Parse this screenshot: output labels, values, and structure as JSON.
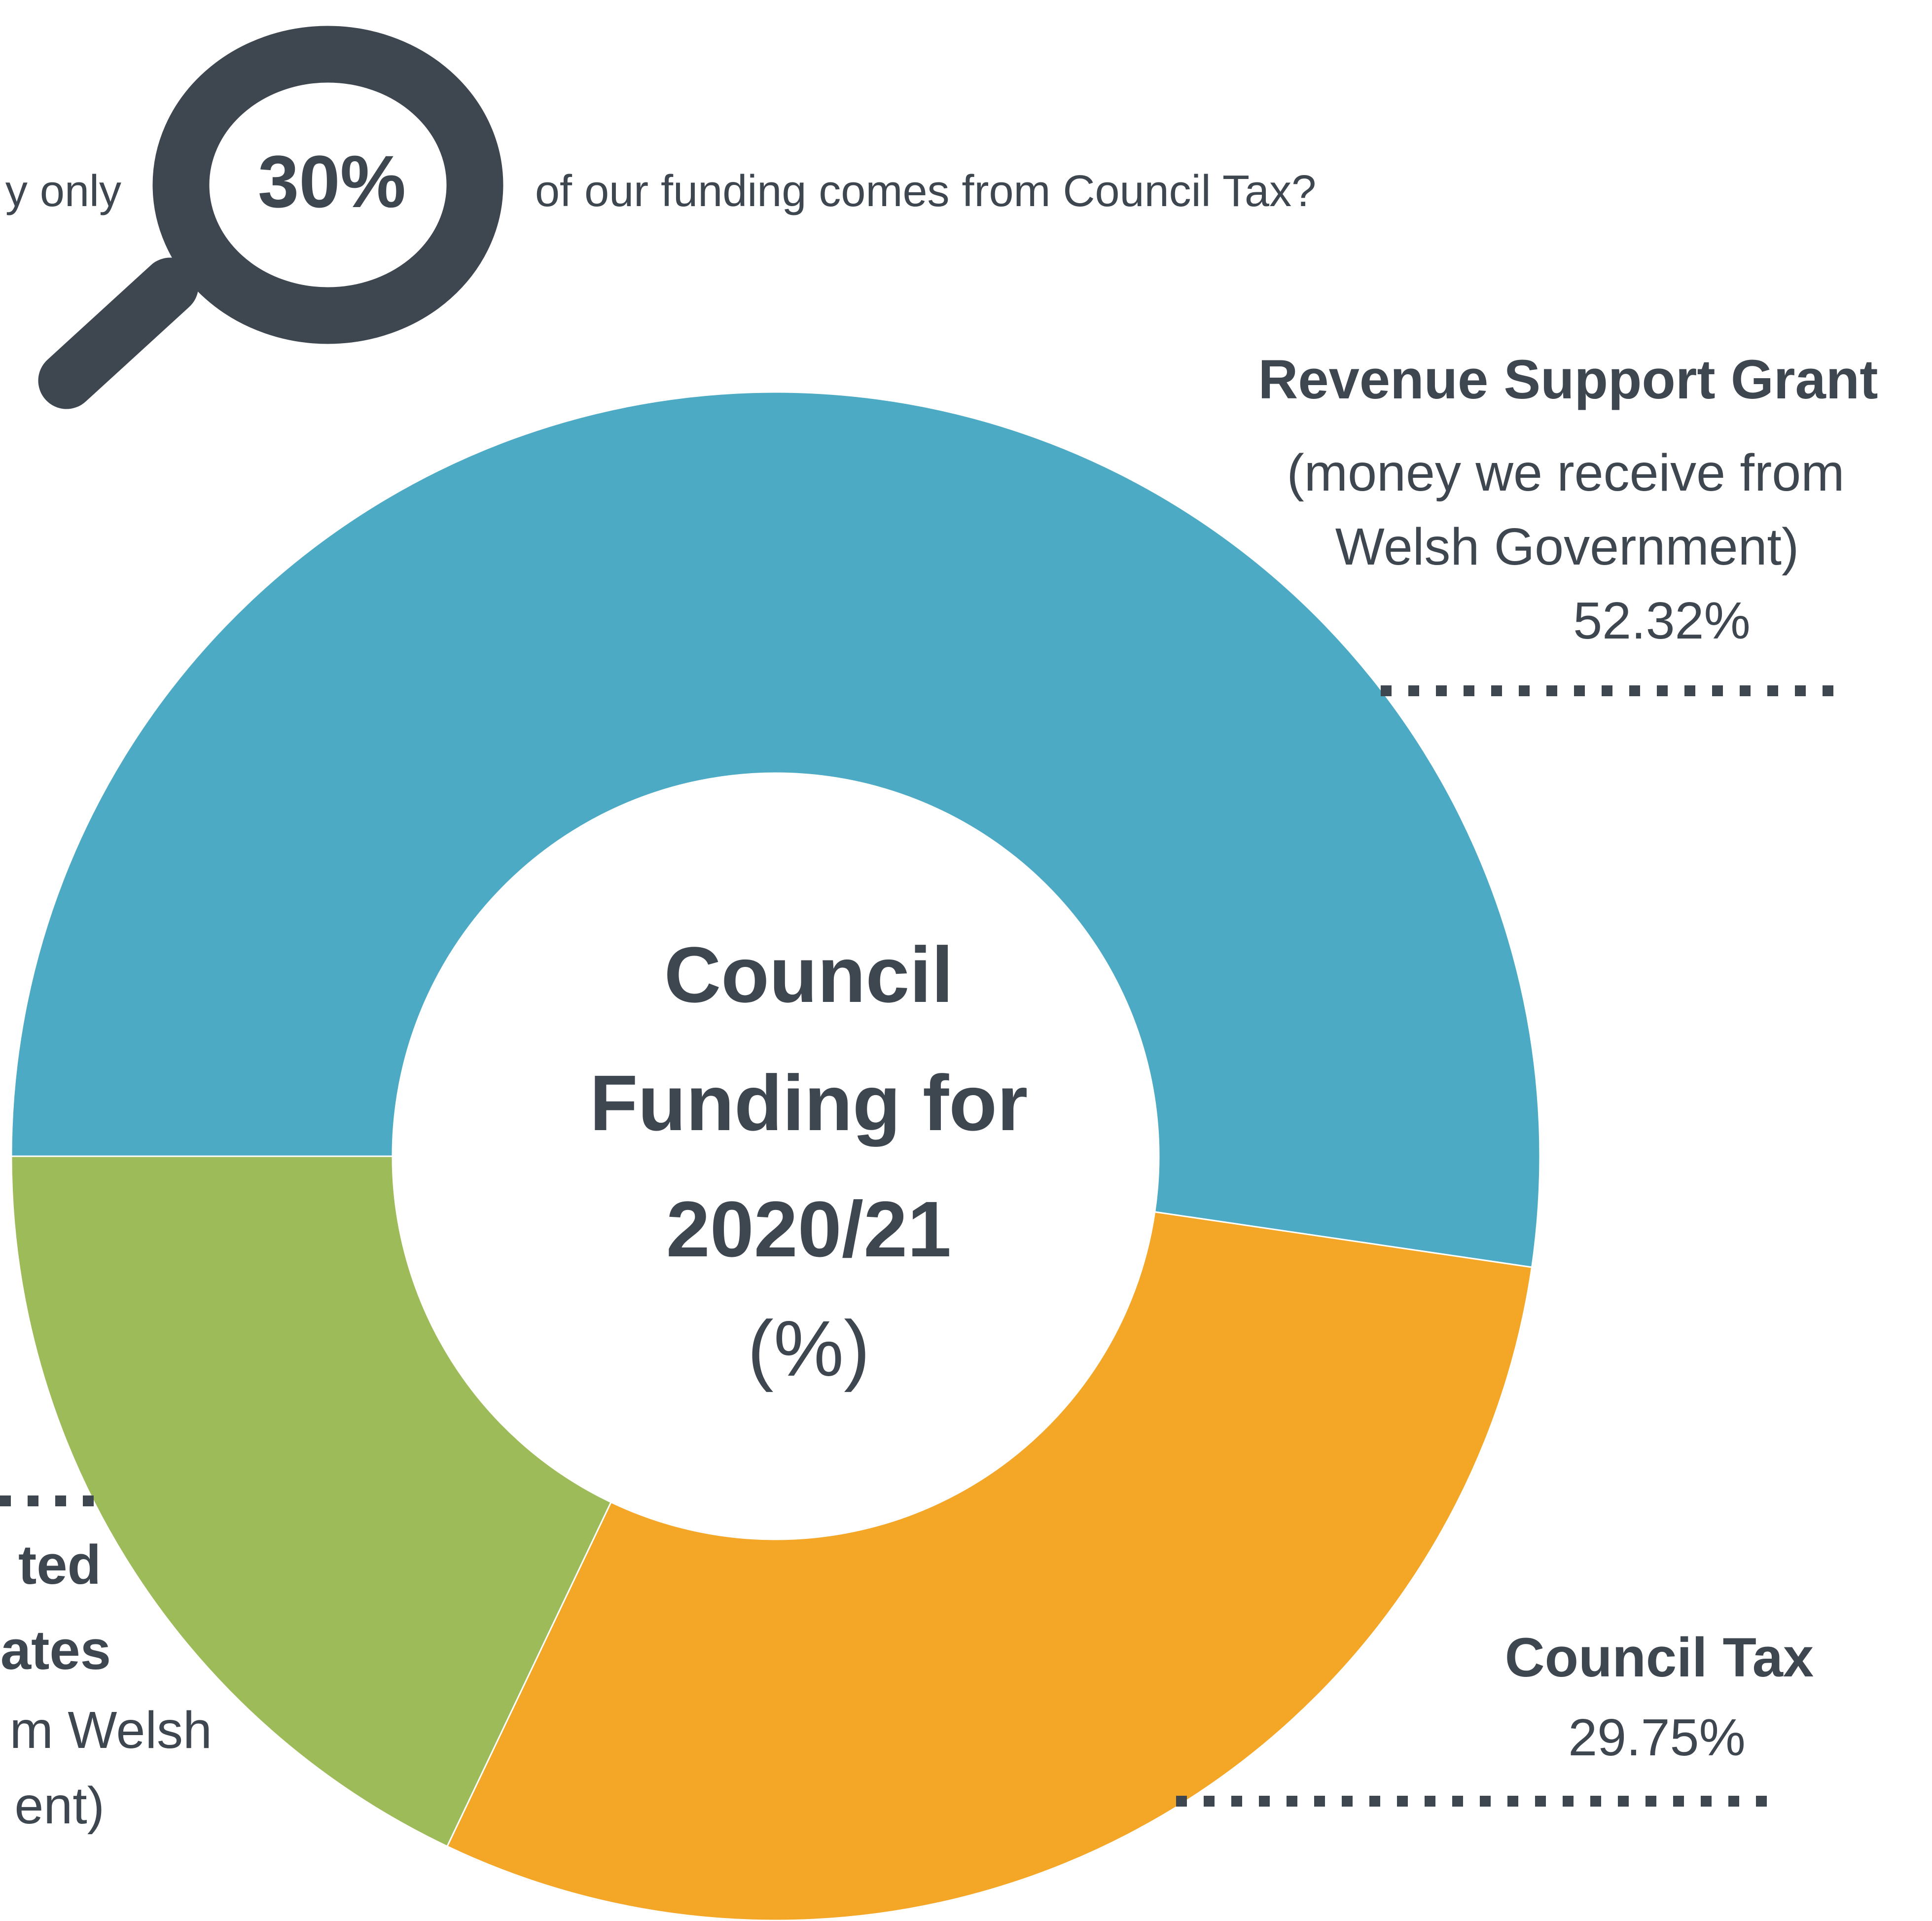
{
  "banner": {
    "prefix": "y only",
    "highlight": "30%",
    "suffix": "of our funding comes from Council Tax?"
  },
  "center": {
    "line1": "Council",
    "line2": "Funding for",
    "line3": "2020/21",
    "line4": "(%)"
  },
  "labels": {
    "rsg": {
      "title": "Revenue Support Grant",
      "sub1": "(money we receive from",
      "sub2": "Welsh Government)",
      "pct": "52.32%"
    },
    "ct": {
      "title": "Council Tax",
      "pct": "29.75%"
    },
    "ndr": {
      "title1": "ted",
      "title2": "ates",
      "sub1": "m Welsh",
      "sub2": "ent)"
    }
  },
  "colors": {
    "text": "#3e4650",
    "rsg": "#4caac5",
    "ct": "#f4a627",
    "ndr": "#9dbb58"
  },
  "chart_data": {
    "type": "pie",
    "donut": true,
    "title": "Council Funding for 2020/21 (%)",
    "slices": [
      {
        "label": "Revenue Support Grant",
        "value": 52.32,
        "color": "#4caac5"
      },
      {
        "label": "Council Tax",
        "value": 29.75,
        "color": "#f4a627"
      },
      {
        "label": "Non-Domestic Rates",
        "value": 17.93,
        "color": "#9dbb58"
      }
    ]
  }
}
